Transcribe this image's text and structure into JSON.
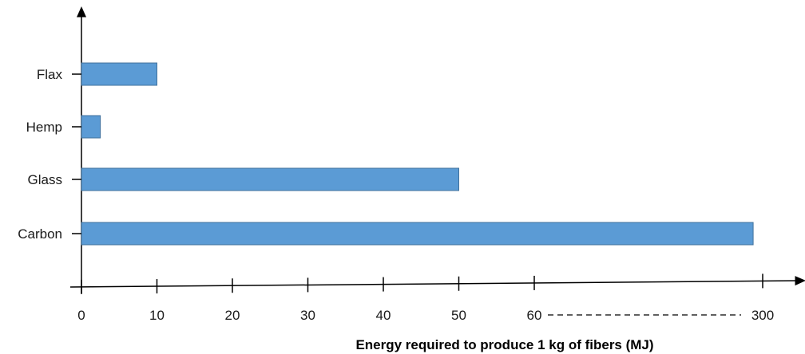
{
  "chart_data": {
    "type": "bar",
    "orientation": "horizontal",
    "categories": [
      "Flax",
      "Hemp",
      "Glass",
      "Carbon"
    ],
    "values": [
      10,
      2.5,
      50,
      290
    ],
    "xlabel": "Energy required to produce 1 kg of fibers (MJ)",
    "ylabel": "",
    "x_ticks": [
      "0",
      "10",
      "20",
      "30",
      "40",
      "50",
      "60",
      "300"
    ],
    "x_axis_break": "60 to 300 shown as dashed gap",
    "xlim": [
      0,
      300
    ],
    "grid": false,
    "legend": "none",
    "colors": {
      "bar_fill": "#5b9bd5",
      "bar_stroke": "#41719c",
      "axis": "#000000"
    }
  }
}
